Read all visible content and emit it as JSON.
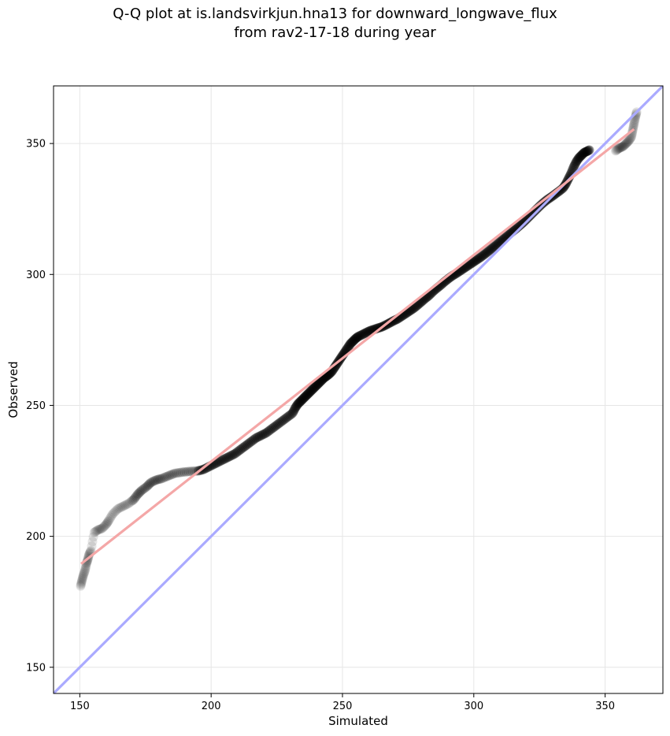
{
  "chart_data": {
    "type": "scatter",
    "title_lines": [
      "Q-Q plot at is.landsvirkjun.hna13 for downward_longwave_flux",
      "from rav2-17-18 during year"
    ],
    "xlabel": "Simulated",
    "ylabel": "Observed",
    "xlim": [
      140,
      372
    ],
    "ylim": [
      140,
      372
    ],
    "xticks": [
      150,
      200,
      250,
      300,
      350
    ],
    "yticks": [
      150,
      200,
      250,
      300,
      350
    ],
    "grid": true,
    "colors": {
      "points": "#000000",
      "identity_line": "#aaaaff",
      "fit_line": "#f4a7a7",
      "frame": "#000000",
      "grid": "#e6e6e6"
    },
    "identity_line": {
      "x": [
        140,
        372
      ],
      "y": [
        140,
        372
      ]
    },
    "fit_line": {
      "x": [
        150.5,
        361
      ],
      "y": [
        189.5,
        355.5
      ]
    },
    "series": [
      {
        "name": "quantiles",
        "points": [
          [
            150.3,
            181
          ],
          [
            150.8,
            183
          ],
          [
            151.3,
            185
          ],
          [
            152,
            187
          ],
          [
            152.5,
            189.5
          ],
          [
            153,
            191
          ],
          [
            153.5,
            193
          ],
          [
            154.2,
            194.5
          ],
          [
            155.5,
            201.5
          ],
          [
            157,
            202.5
          ],
          [
            158.5,
            203
          ],
          [
            160,
            204.5
          ],
          [
            161,
            206
          ],
          [
            162.5,
            208.5
          ],
          [
            164.5,
            210.5
          ],
          [
            166.5,
            211.5
          ],
          [
            168.5,
            212.5
          ],
          [
            170.5,
            214
          ],
          [
            172,
            216
          ],
          [
            173.5,
            217.5
          ],
          [
            175.5,
            219
          ],
          [
            177,
            220.5
          ],
          [
            179,
            221.5
          ],
          [
            181,
            222
          ],
          [
            183.5,
            223
          ],
          [
            186,
            224
          ],
          [
            189,
            224.5
          ],
          [
            192,
            224.8
          ],
          [
            195,
            225
          ],
          [
            197,
            225.5
          ],
          [
            199,
            226.5
          ],
          [
            201,
            227.5
          ],
          [
            203,
            228.5
          ],
          [
            205,
            229.5
          ],
          [
            207,
            230.5
          ],
          [
            209,
            231.5
          ],
          [
            211,
            233
          ],
          [
            213,
            234.5
          ],
          [
            215,
            236
          ],
          [
            217,
            237.5
          ],
          [
            219,
            238.5
          ],
          [
            221,
            239.5
          ],
          [
            223,
            241
          ],
          [
            225,
            242.5
          ],
          [
            227,
            244
          ],
          [
            229,
            245.5
          ],
          [
            231,
            247
          ],
          [
            232,
            249
          ],
          [
            233,
            250.5
          ],
          [
            234,
            251.5
          ],
          [
            235,
            252.5
          ],
          [
            236,
            253.5
          ],
          [
            237,
            254.5
          ],
          [
            238,
            255.5
          ],
          [
            239,
            256.5
          ],
          [
            240,
            257.5
          ],
          [
            241,
            258.5
          ],
          [
            242,
            259.5
          ],
          [
            243,
            260.5
          ],
          [
            244,
            261.2
          ],
          [
            245,
            262
          ],
          [
            246,
            263
          ],
          [
            247,
            264.5
          ],
          [
            248,
            266
          ],
          [
            249,
            267.5
          ],
          [
            250,
            269
          ],
          [
            251,
            270.5
          ],
          [
            252,
            272
          ],
          [
            253,
            273.5
          ],
          [
            254,
            274.5
          ],
          [
            255,
            275.5
          ],
          [
            256,
            276.3
          ],
          [
            257.5,
            277
          ],
          [
            259,
            277.8
          ],
          [
            260.5,
            278.5
          ],
          [
            262,
            279
          ],
          [
            263.5,
            279.5
          ],
          [
            265,
            280
          ],
          [
            266.5,
            280.7
          ],
          [
            268,
            281.5
          ],
          [
            269.5,
            282.3
          ],
          [
            271,
            283
          ],
          [
            272.5,
            284
          ],
          [
            274,
            285
          ],
          [
            275.5,
            286
          ],
          [
            277,
            287
          ],
          [
            278.5,
            288.2
          ],
          [
            280,
            289.5
          ],
          [
            281.5,
            290.8
          ],
          [
            283,
            292
          ],
          [
            284.5,
            293.5
          ],
          [
            286,
            294.8
          ],
          [
            287.5,
            296
          ],
          [
            289,
            297.3
          ],
          [
            290.5,
            298.5
          ],
          [
            292,
            299.6
          ],
          [
            293.5,
            300.5
          ],
          [
            295,
            301.5
          ],
          [
            296.5,
            302.5
          ],
          [
            298,
            303.5
          ],
          [
            299.5,
            304.5
          ],
          [
            301,
            305.5
          ],
          [
            302.5,
            306.5
          ],
          [
            304,
            307.6
          ],
          [
            305.5,
            308.8
          ],
          [
            307,
            310
          ],
          [
            308.5,
            311.2
          ],
          [
            310,
            312.5
          ],
          [
            311.5,
            313.7
          ],
          [
            313,
            315
          ],
          [
            314.5,
            316.2
          ],
          [
            316,
            317.4
          ],
          [
            317.5,
            318.7
          ],
          [
            319,
            320
          ],
          [
            320.5,
            321.5
          ],
          [
            322,
            323
          ],
          [
            323.5,
            324.5
          ],
          [
            325,
            326
          ],
          [
            326.5,
            327.4
          ],
          [
            328,
            328.6
          ],
          [
            329.5,
            329.6
          ],
          [
            331,
            330.7
          ],
          [
            332.5,
            331.8
          ],
          [
            334,
            333
          ],
          [
            335,
            334.5
          ],
          [
            336,
            336.5
          ],
          [
            337,
            338.5
          ],
          [
            338,
            341
          ],
          [
            339,
            343
          ],
          [
            340,
            344.5
          ],
          [
            341,
            345.5
          ],
          [
            342,
            346.5
          ],
          [
            343,
            347
          ],
          [
            344,
            347.5
          ],
          [
            354,
            347.2
          ],
          [
            355,
            348
          ],
          [
            356,
            348.5
          ],
          [
            357,
            349
          ],
          [
            358,
            350
          ],
          [
            359,
            351
          ],
          [
            360,
            352.5
          ],
          [
            360.5,
            355
          ],
          [
            361,
            357.5
          ],
          [
            361.5,
            360
          ],
          [
            362,
            362
          ]
        ]
      }
    ]
  }
}
